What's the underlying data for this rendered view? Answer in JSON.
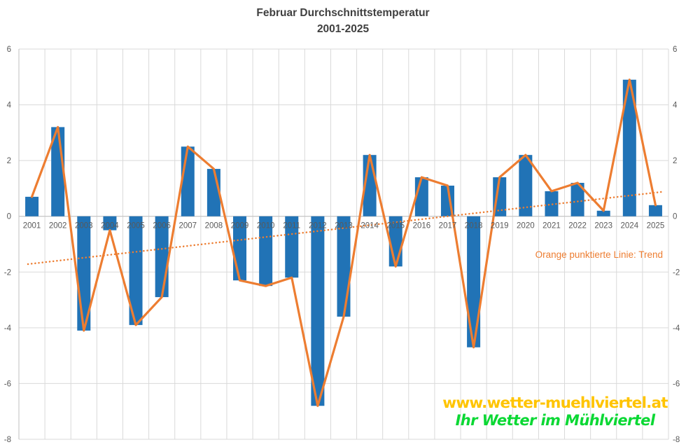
{
  "header": {
    "title_line1": "Februar Durchschnittstemperatur",
    "title_line2": "2001-2025"
  },
  "annotation": {
    "trend_note": "Orange punktierte Linie: Trend"
  },
  "watermark": {
    "url": "www.wetter-muehlviertel.at",
    "slogan": "Ihr Wetter im Mühlviertel"
  },
  "colors": {
    "bar": "#2173B6",
    "line": "#ED7D31",
    "trend": "#ED7D31",
    "grid": "#D9D9D9",
    "axis": "#BFBFBF",
    "tick_text": "#595959",
    "title_text": "#404040",
    "watermark_yellow": "#FFC400",
    "watermark_green": "#0BD834"
  },
  "chart_data": {
    "type": "bar",
    "overlay_line": true,
    "title": "Februar Durchschnittstemperatur 2001-2025",
    "xlabel": "",
    "ylabel": "",
    "ylim": [
      -8,
      6
    ],
    "yticks": [
      6,
      4,
      2,
      0,
      -2,
      -4,
      -6,
      -8
    ],
    "grid": true,
    "legend_position": "none",
    "categories": [
      "2001",
      "2002",
      "2003",
      "2004",
      "2005",
      "2006",
      "2007",
      "2008",
      "2009",
      "2010",
      "2011",
      "2012",
      "2013",
      "2014",
      "2015",
      "2016",
      "2017",
      "2018",
      "2019",
      "2020",
      "2021",
      "2022",
      "2023",
      "2024",
      "2025"
    ],
    "values": [
      0.7,
      3.2,
      -4.1,
      -0.5,
      -3.9,
      -2.9,
      2.5,
      1.7,
      -2.3,
      -2.5,
      -2.2,
      -6.8,
      -3.6,
      2.2,
      -1.8,
      1.4,
      1.1,
      -4.7,
      1.4,
      2.2,
      0.9,
      1.2,
      0.2,
      4.9,
      0.4
    ],
    "trend": {
      "type": "linear-dotted",
      "value_2001": -1.7,
      "value_2025": 0.85,
      "label": "Orange punktierte Linie: Trend"
    }
  }
}
